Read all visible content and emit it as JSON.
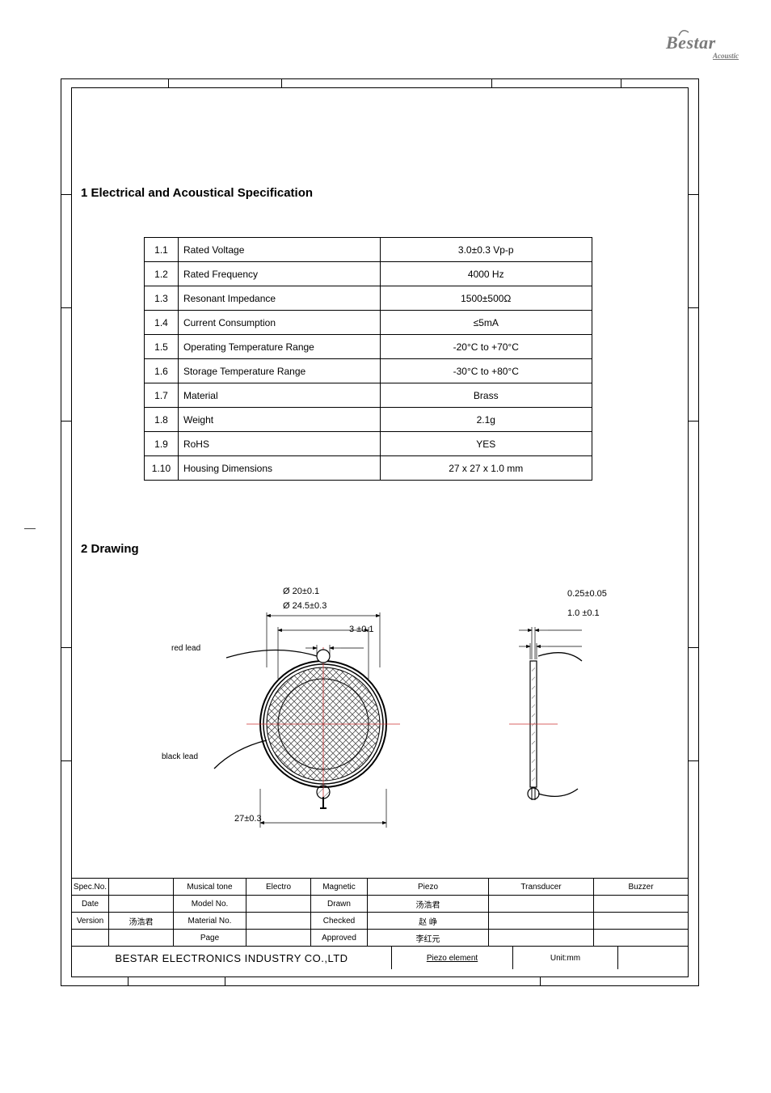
{
  "logo": {
    "brand": "Bestar",
    "sub": "Acoustic"
  },
  "headings": {
    "electrical": "1 Electrical and Acoustical Specification",
    "drawing": "2 Drawing"
  },
  "spec_table": {
    "rows": [
      {
        "n": "1.1",
        "param": "Rated Voltage",
        "val": "3.0±0.3 Vp-p"
      },
      {
        "n": "1.2",
        "param": "Rated Frequency",
        "val": "4000 Hz"
      },
      {
        "n": "1.3",
        "param": "Resonant Impedance",
        "val": "1500±500Ω"
      },
      {
        "n": "1.4",
        "param": "Current Consumption",
        "val": "≤5mA"
      },
      {
        "n": "1.5",
        "param": "Operating Temperature Range",
        "val": "-20°C to +70°C"
      },
      {
        "n": "1.6",
        "param": "Storage Temperature Range",
        "val": "-30°C to +80°C"
      },
      {
        "n": "1.7",
        "param": "Material",
        "val": "Brass"
      },
      {
        "n": "1.8",
        "param": "Weight",
        "val": "2.1g"
      },
      {
        "n": "1.9",
        "param": "RoHS",
        "val": "YES"
      },
      {
        "n": "1.10",
        "param": "Housing Dimensions",
        "val": "27 x 27 x 1.0 mm"
      }
    ]
  },
  "dimensions": {
    "d1": "Ø 20±0.1",
    "d2": "Ø 24.5±0.3",
    "d3": "3 ±0.1",
    "d4": "27±0.3",
    "t1": "0.25±0.05",
    "t2": "1.0 ±0.1"
  },
  "leads": {
    "red": "red lead",
    "black": "black lead"
  },
  "titleblock": {
    "row1": [
      "Spec.No.",
      "",
      "Musical tone",
      "Electro",
      "Magnetic",
      "Piezo",
      "Transducer",
      "Buzzer"
    ],
    "row2": [
      "Date",
      "",
      "Model No.",
      "",
      "Drawn",
      "汤浩君",
      "",
      ""
    ],
    "row3": [
      "Version",
      "汤浩君",
      "Material No.",
      "",
      "Checked",
      "赵  峥",
      "",
      ""
    ],
    "row4": [
      "",
      "",
      "Page",
      "",
      "Approved",
      "李红元",
      "",
      ""
    ],
    "row5": [
      "BESTAR ELECTRONICS INDUSTRY CO.,LTD",
      "Piezo     element",
      "Unit:mm",
      ""
    ]
  },
  "colors": {
    "frame": "#000000",
    "centerline": "#cc3333",
    "hatch": "#555555",
    "logo": "#7a7a7a"
  }
}
